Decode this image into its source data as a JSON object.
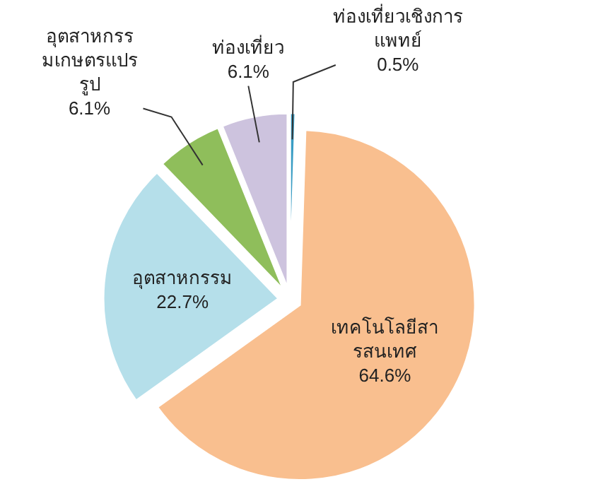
{
  "chart_data": {
    "type": "pie",
    "categories": [
      "ท่องเที่ยวเชิงการแพทย์",
      "เทคโนโลยีสารสนเทศ",
      "อุตสาหกรรม",
      "อุตสาหกรรมเกษตรแปรรูป",
      "ท่องเที่ยว"
    ],
    "values": [
      0.5,
      64.6,
      22.7,
      6.1,
      6.1
    ],
    "colors": [
      "#3a9dc4",
      "#f9bf8f",
      "#b5dfea",
      "#8fbe5b",
      "#cdc3de"
    ],
    "data_labels": true,
    "value_labels": [
      "0.5%",
      "64.6%",
      "22.7%",
      "6.1%",
      "6.1%"
    ]
  }
}
